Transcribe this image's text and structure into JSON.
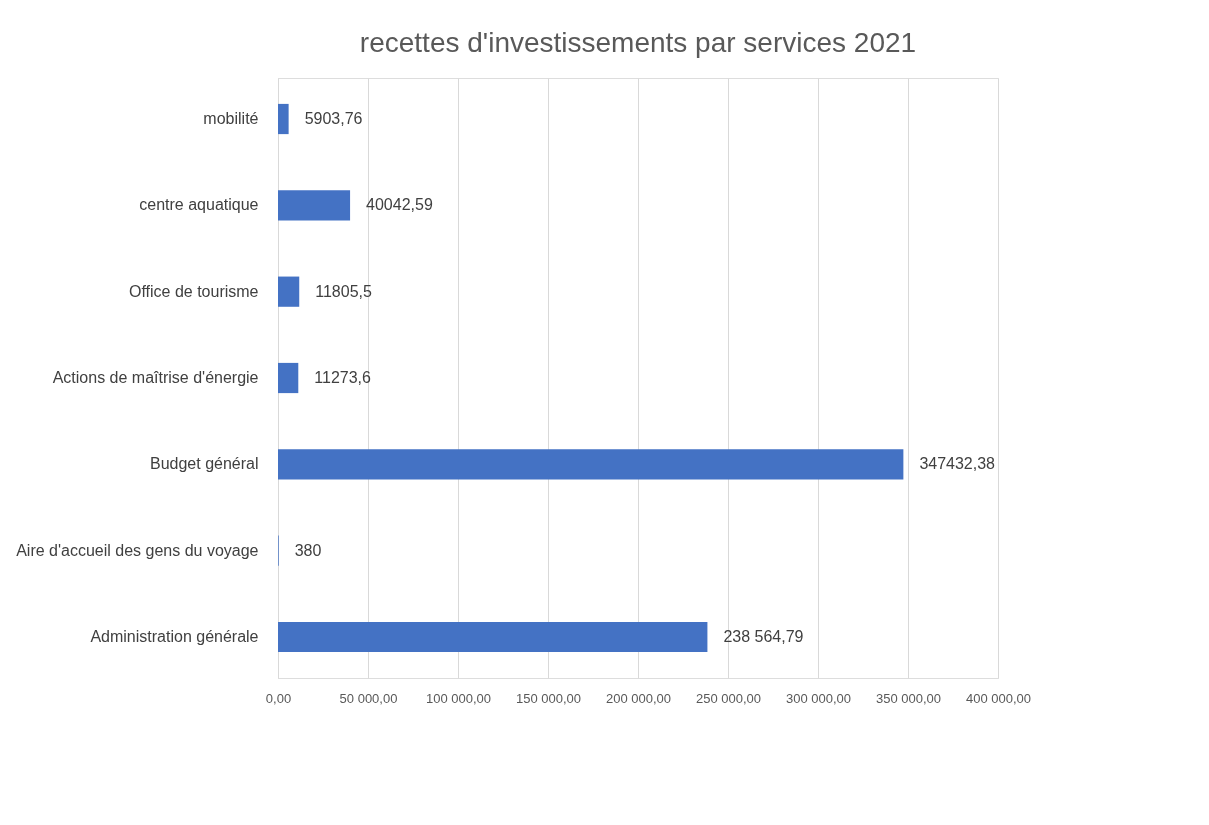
{
  "chart_data": {
    "type": "bar",
    "orientation": "horizontal",
    "title": "recettes d'investissements par services 2021",
    "categories": [
      "mobilité",
      "centre aquatique",
      "Office de tourisme",
      "Actions de maîtrise d'énergie",
      "Budget général",
      "Aire d'accueil des gens du voyage",
      "Administration générale"
    ],
    "values": [
      5903.76,
      40042.59,
      11805.5,
      11273.6,
      347432.38,
      380,
      238564.79
    ],
    "value_labels": [
      "5903,76",
      "40042,59",
      "11805,5",
      "11273,6",
      "347432,38",
      "380",
      "238 564,79"
    ],
    "color": "#4472c4",
    "xlim": [
      0,
      400000
    ],
    "xticks": [
      {
        "value": 0,
        "label": "0,00"
      },
      {
        "value": 50000,
        "label": "50 000,00"
      },
      {
        "value": 100000,
        "label": "100 000,00"
      },
      {
        "value": 150000,
        "label": "150 000,00"
      },
      {
        "value": 200000,
        "label": "200 000,00"
      },
      {
        "value": 250000,
        "label": "250 000,00"
      },
      {
        "value": 300000,
        "label": "300 000,00"
      },
      {
        "value": 350000,
        "label": "350 000,00"
      },
      {
        "value": 400000,
        "label": "400 000,00"
      }
    ],
    "grid": "x"
  }
}
